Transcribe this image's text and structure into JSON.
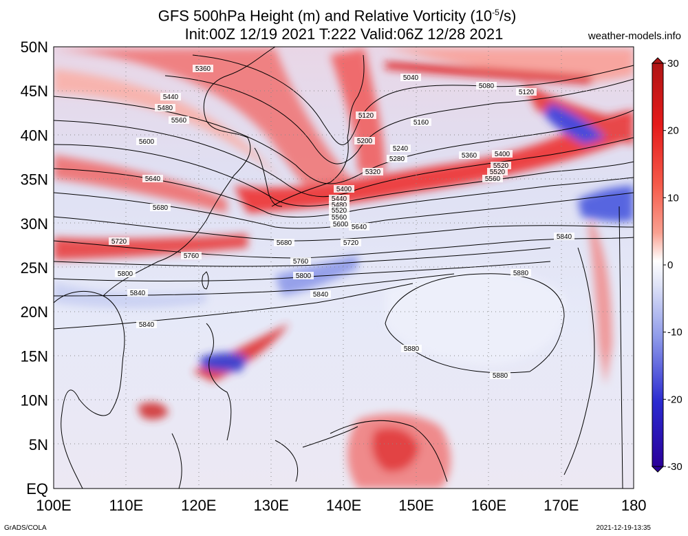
{
  "title": {
    "line1": "GFS 500hPa Height (m) and Relative Vorticity (10",
    "line1_sup": "-5",
    "line1_end": "/s)",
    "line2": "Init:00Z 12/19 2021 T:222 Valid:06Z 12/28 2021"
  },
  "source": "weather-models.info",
  "footer": {
    "left": "GrADS/COLA",
    "right": "2021-12-19-13:35"
  },
  "map": {
    "lat_labels": [
      "50N",
      "45N",
      "40N",
      "35N",
      "30N",
      "25N",
      "20N",
      "15N",
      "10N",
      "5N",
      "EQ"
    ],
    "lon_labels": [
      "100E",
      "110E",
      "120E",
      "130E",
      "140E",
      "150E",
      "160E",
      "170E",
      "180"
    ],
    "colorbar": {
      "ticks": [
        "30",
        "20",
        "10",
        "0",
        "-10",
        "-20",
        "-30"
      ],
      "colors_high_to_low": [
        "#b01515",
        "#e41a1a",
        "#f55a4a",
        "#f9a090",
        "#fde0d8",
        "#ffffff",
        "#dfe3f7",
        "#a8b2ee",
        "#6b7ce4",
        "#2b2ad0",
        "#2a009a"
      ]
    },
    "contour_labels": [
      "5040",
      "5080",
      "5120",
      "5120",
      "5160",
      "5200",
      "5240",
      "5280",
      "5320",
      "5360",
      "5360",
      "5400",
      "5400",
      "5440",
      "5440",
      "5480",
      "5480",
      "5520",
      "5520",
      "5520",
      "5560",
      "5560",
      "5560",
      "5600",
      "5600",
      "5640",
      "5640",
      "5680",
      "5680",
      "5720",
      "5720",
      "5760",
      "5760",
      "5800",
      "5800",
      "5840",
      "5840",
      "5840",
      "5840",
      "5880",
      "5880",
      "5880"
    ]
  }
}
